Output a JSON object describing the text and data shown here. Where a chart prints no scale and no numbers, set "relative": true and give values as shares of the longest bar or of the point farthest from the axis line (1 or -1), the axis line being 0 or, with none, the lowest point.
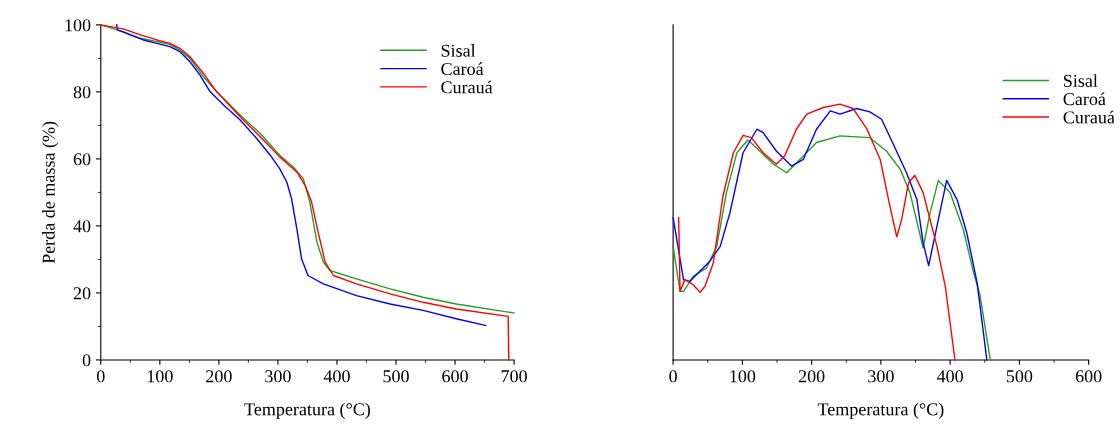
{
  "chart_data": [
    {
      "type": "line",
      "xlabel": "Temperatura (°C)",
      "ylabel": "Perda de massa (%)",
      "xlim": [
        0,
        700
      ],
      "ylim": [
        0,
        100
      ],
      "xticks": [
        0,
        100,
        200,
        300,
        400,
        500,
        600,
        700
      ],
      "yticks": [
        0,
        20,
        40,
        60,
        80,
        100
      ],
      "legend": "top right",
      "grid": false,
      "series": [
        {
          "name": "Sisal",
          "color": "#22a022",
          "x": [
            0,
            38,
            67,
            95,
            117,
            134,
            151,
            174,
            196,
            236,
            270,
            303,
            326,
            343,
            354,
            366,
            377,
            388,
            433,
            490,
            546,
            602,
            700
          ],
          "values": [
            100,
            98.0,
            96.0,
            95.0,
            94.2,
            92.5,
            90.0,
            84.5,
            80.1,
            73.1,
            67.6,
            61.1,
            57.6,
            54.1,
            47.1,
            35.2,
            29.2,
            26.7,
            24.2,
            21.2,
            18.7,
            16.7,
            14.0
          ]
        },
        {
          "name": "Caroá",
          "color": "#0000ff",
          "x": [
            27,
            28,
            50,
            72,
            95,
            117,
            134,
            151,
            168,
            185,
            208,
            236,
            264,
            287,
            303,
            315,
            323,
            332,
            340,
            351,
            377,
            433,
            490,
            546,
            602,
            652
          ],
          "values": [
            100,
            98.5,
            97.0,
            95.5,
            94.5,
            93.5,
            92.0,
            89.0,
            85.0,
            80.1,
            76.1,
            71.6,
            66.1,
            61.1,
            57.1,
            53.1,
            48.2,
            39.2,
            30.2,
            25.2,
            22.7,
            19.2,
            16.7,
            14.8,
            12.3,
            10.3
          ]
        },
        {
          "name": "Curauá",
          "color": "#ff0000",
          "x": [
            0,
            38,
            67,
            95,
            117,
            134,
            151,
            174,
            196,
            236,
            270,
            303,
            332,
            346,
            357,
            368,
            380,
            394,
            433,
            490,
            546,
            602,
            690,
            691
          ],
          "values": [
            100,
            98.8,
            97.0,
            95.5,
            94.5,
            93.0,
            90.5,
            85.5,
            80.1,
            72.6,
            66.6,
            60.6,
            56.1,
            52.1,
            47.1,
            38.2,
            29.2,
            25.2,
            22.7,
            19.7,
            17.2,
            15.2,
            13.0,
            0
          ]
        }
      ]
    },
    {
      "type": "line",
      "xlabel": "Temperatura (°C)",
      "xlim": [
        0,
        600
      ],
      "xticks": [
        0,
        100,
        200,
        300,
        400,
        500,
        600
      ],
      "relative": true,
      "legend": "top right",
      "grid": false,
      "series": [
        {
          "name": "Sisal",
          "color": "#22a022",
          "x": [
            0,
            10,
            15,
            29,
            48,
            63,
            77,
            92,
            108,
            125,
            145,
            164,
            183,
            207,
            241,
            284,
            308,
            328,
            342,
            361,
            371,
            383,
            400,
            419,
            434,
            443,
            458
          ],
          "values": [
            0.444,
            0.268,
            0.268,
            0.327,
            0.359,
            0.444,
            0.654,
            0.81,
            0.86,
            0.817,
            0.765,
            0.732,
            0.784,
            0.85,
            0.876,
            0.869,
            0.817,
            0.745,
            0.654,
            0.438,
            0.575,
            0.702,
            0.654,
            0.51,
            0.34,
            0.255,
            0
          ]
        },
        {
          "name": "Caroá",
          "color": "#0000ff",
          "x": [
            0,
            15,
            24,
            36,
            53,
            68,
            82,
            101,
            121,
            130,
            149,
            171,
            188,
            207,
            227,
            241,
            265,
            284,
            301,
            318,
            337,
            352,
            361,
            369,
            381,
            395,
            410,
            424,
            439,
            453
          ],
          "values": [
            0.556,
            0.314,
            0.307,
            0.34,
            0.386,
            0.444,
            0.575,
            0.81,
            0.902,
            0.889,
            0.817,
            0.758,
            0.784,
            0.902,
            0.974,
            0.961,
            0.983,
            0.97,
            0.941,
            0.843,
            0.732,
            0.627,
            0.458,
            0.369,
            0.523,
            0.702,
            0.627,
            0.497,
            0.301,
            0
          ]
        },
        {
          "name": "Curauá",
          "color": "#ff0000",
          "x": [
            8,
            10,
            17,
            29,
            39,
            46,
            58,
            72,
            87,
            101,
            113,
            130,
            149,
            161,
            178,
            193,
            217,
            241,
            260,
            280,
            299,
            313,
            323,
            330,
            340,
            349,
            361,
            371,
            381,
            393,
            407
          ],
          "values": [
            0.556,
            0.268,
            0.314,
            0.294,
            0.264,
            0.288,
            0.379,
            0.641,
            0.81,
            0.878,
            0.869,
            0.81,
            0.765,
            0.797,
            0.902,
            0.961,
            0.987,
            1,
            0.983,
            0.902,
            0.784,
            0.601,
            0.481,
            0.549,
            0.693,
            0.722,
            0.654,
            0.549,
            0.444,
            0.288,
            0
          ]
        }
      ]
    }
  ]
}
